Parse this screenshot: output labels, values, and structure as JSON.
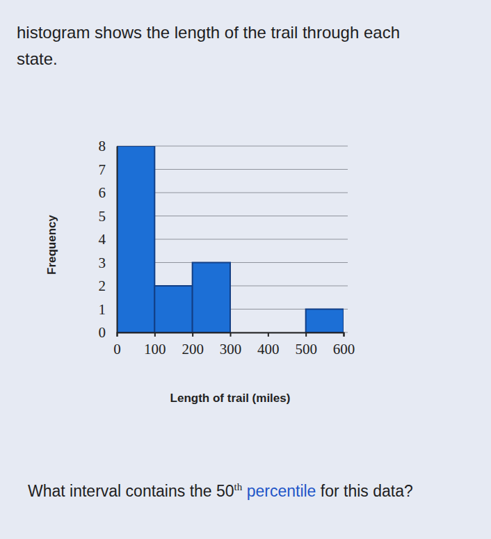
{
  "chart_data": {
    "type": "histogram",
    "title": "histogram shows the length of the trail through each state.",
    "annotations": [
      "What interval contains the 50",
      "th",
      " percentile",
      " for this data?"
    ],
    "x_label": "Length of trail (miles)",
    "y_label": "Frequency",
    "bins": [
      0,
      100,
      200,
      300,
      400,
      500,
      600
    ],
    "values": [
      8,
      2,
      3,
      0,
      0,
      1
    ],
    "xlim": [
      0,
      600
    ],
    "xticks": [
      0,
      100,
      200,
      300,
      400,
      500,
      600
    ],
    "ylim": [
      0,
      8
    ],
    "yticks": [
      0,
      1,
      2,
      3,
      4,
      5,
      6,
      7,
      8
    ],
    "grid": true,
    "color": "#1c6fd6"
  }
}
